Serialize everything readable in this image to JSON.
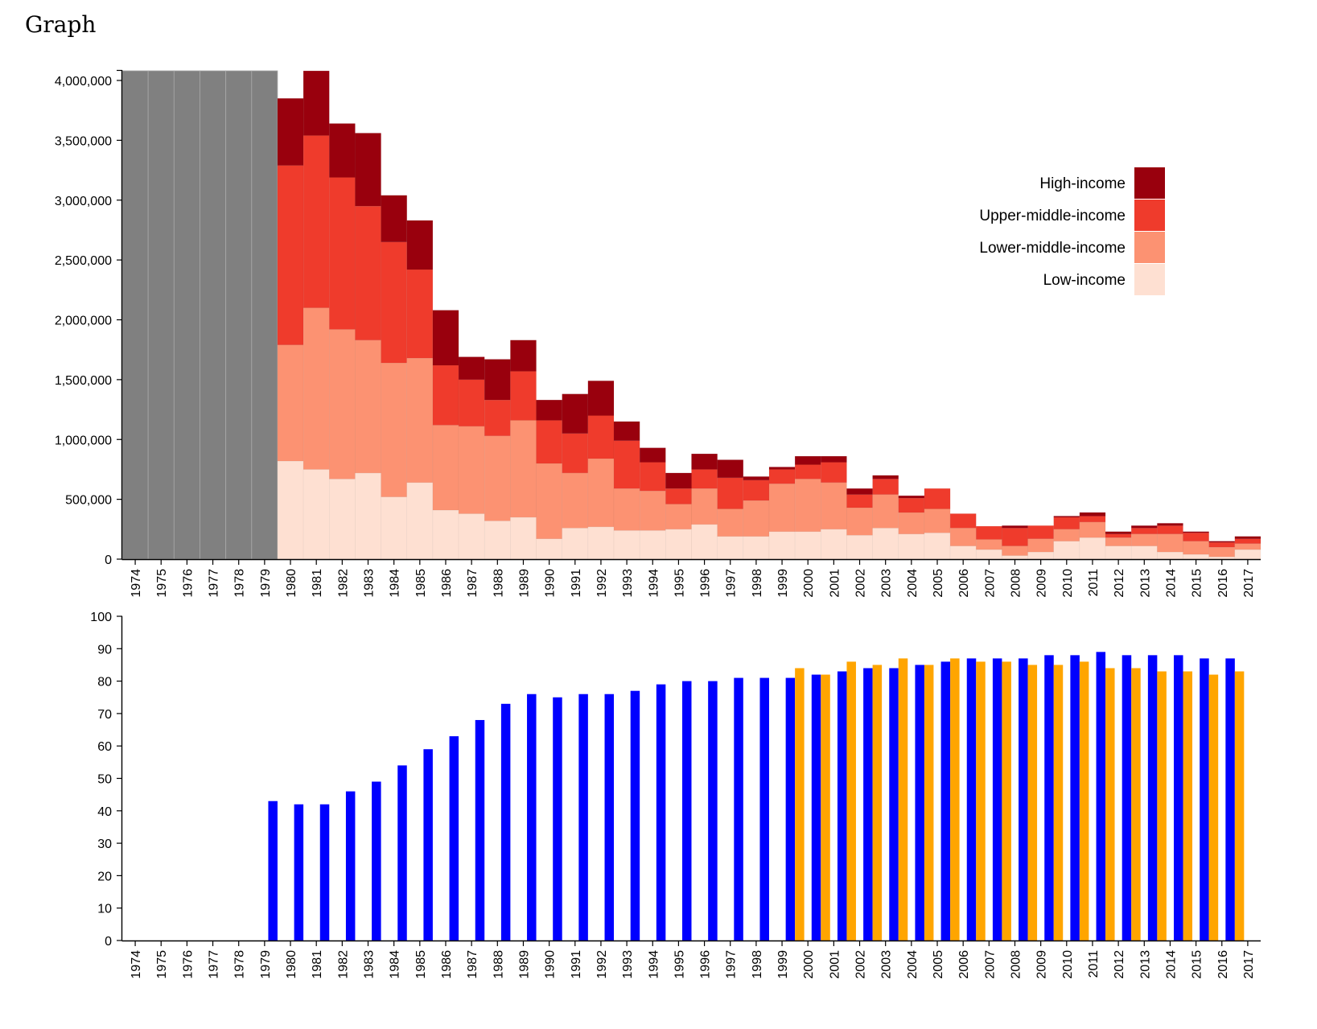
{
  "title": "Graph",
  "chart_data": [
    {
      "type": "bar",
      "stacked": true,
      "categories": [
        "1974",
        "1975",
        "1976",
        "1977",
        "1978",
        "1979",
        "1980",
        "1981",
        "1982",
        "1983",
        "1984",
        "1985",
        "1986",
        "1987",
        "1988",
        "1989",
        "1990",
        "1991",
        "1992",
        "1993",
        "1994",
        "1995",
        "1996",
        "1997",
        "1998",
        "1999",
        "2000",
        "2001",
        "2002",
        "2003",
        "2004",
        "2005",
        "2006",
        "2007",
        "2008",
        "2009",
        "2010",
        "2011",
        "2012",
        "2013",
        "2014",
        "2015",
        "2016",
        "2017"
      ],
      "no_data_categories": [
        "1974",
        "1975",
        "1976",
        "1977",
        "1978",
        "1979"
      ],
      "no_data_color": "#808080",
      "series": [
        {
          "name": "Low-income",
          "color": "#fee0d2",
          "values": [
            null,
            null,
            null,
            null,
            null,
            null,
            820000,
            750000,
            670000,
            720000,
            520000,
            640000,
            410000,
            380000,
            320000,
            350000,
            170000,
            260000,
            270000,
            240000,
            240000,
            250000,
            290000,
            190000,
            190000,
            230000,
            230000,
            250000,
            200000,
            260000,
            210000,
            220000,
            110000,
            80000,
            30000,
            60000,
            150000,
            180000,
            110000,
            110000,
            60000,
            40000,
            20000,
            80000
          ]
        },
        {
          "name": "Lower-middle-income",
          "color": "#fc9272",
          "values": [
            null,
            null,
            null,
            null,
            null,
            null,
            970000,
            1350000,
            1250000,
            1110000,
            1120000,
            1040000,
            710000,
            730000,
            710000,
            810000,
            630000,
            460000,
            570000,
            350000,
            330000,
            210000,
            300000,
            230000,
            300000,
            400000,
            440000,
            390000,
            230000,
            280000,
            180000,
            200000,
            150000,
            85000,
            80000,
            110000,
            100000,
            130000,
            70000,
            100000,
            150000,
            110000,
            80000,
            50000
          ]
        },
        {
          "name": "Upper-middle-income",
          "color": "#ef3b2c",
          "values": [
            null,
            null,
            null,
            null,
            null,
            null,
            1500000,
            1440000,
            1270000,
            1120000,
            1010000,
            740000,
            500000,
            390000,
            300000,
            410000,
            360000,
            330000,
            360000,
            400000,
            240000,
            130000,
            160000,
            260000,
            170000,
            120000,
            120000,
            170000,
            110000,
            130000,
            120000,
            170000,
            120000,
            110000,
            150000,
            110000,
            100000,
            50000,
            30000,
            50000,
            70000,
            70000,
            40000,
            40000
          ]
        },
        {
          "name": "High-income",
          "color": "#99000d",
          "values": [
            null,
            null,
            null,
            null,
            null,
            null,
            560000,
            540000,
            450000,
            610000,
            390000,
            410000,
            460000,
            190000,
            340000,
            260000,
            170000,
            330000,
            290000,
            160000,
            120000,
            130000,
            130000,
            150000,
            30000,
            20000,
            70000,
            50000,
            50000,
            30000,
            20000,
            0,
            0,
            0,
            20000,
            0,
            10000,
            30000,
            20000,
            20000,
            20000,
            10000,
            10000,
            20000
          ]
        }
      ],
      "ylim": [
        0,
        4000000
      ],
      "yticks": [
        0,
        500000,
        1000000,
        1500000,
        2000000,
        2500000,
        3000000,
        3500000,
        4000000
      ],
      "ytick_labels": [
        "0",
        "500,000",
        "1,000,000",
        "1,500,000",
        "2,000,000",
        "2,500,000",
        "3,000,000",
        "3,500,000",
        "4,000,000"
      ],
      "legend_position": "top-right",
      "legend_order": [
        "High-income",
        "Upper-middle-income",
        "Lower-middle-income",
        "Low-income"
      ]
    },
    {
      "type": "bar",
      "categories": [
        "1974",
        "1975",
        "1976",
        "1977",
        "1978",
        "1979",
        "1980",
        "1981",
        "1982",
        "1983",
        "1984",
        "1985",
        "1986",
        "1987",
        "1988",
        "1989",
        "1990",
        "1991",
        "1992",
        "1993",
        "1994",
        "1995",
        "1996",
        "1997",
        "1998",
        "1999",
        "2000",
        "2001",
        "2002",
        "2003",
        "2004",
        "2005",
        "2006",
        "2007",
        "2008",
        "2009",
        "2010",
        "2011",
        "2012",
        "2013",
        "2014",
        "2015",
        "2016",
        "2017"
      ],
      "series": [
        {
          "color": "#0000ff",
          "values": [
            null,
            null,
            null,
            null,
            null,
            43,
            42,
            42,
            46,
            49,
            54,
            59,
            63,
            68,
            73,
            76,
            75,
            76,
            76,
            77,
            79,
            80,
            80,
            81,
            81,
            81,
            82,
            83,
            84,
            84,
            85,
            86,
            87,
            87,
            87,
            88,
            88,
            89,
            88,
            88,
            88,
            87,
            87,
            null
          ]
        },
        {
          "color": "#ffa500",
          "values": [
            null,
            null,
            null,
            null,
            null,
            null,
            null,
            null,
            null,
            null,
            null,
            null,
            null,
            null,
            null,
            null,
            null,
            null,
            null,
            null,
            null,
            null,
            null,
            null,
            null,
            84,
            82,
            86,
            85,
            87,
            85,
            87,
            86,
            86,
            85,
            85,
            86,
            84,
            84,
            83,
            83,
            82,
            83,
            null
          ]
        }
      ],
      "ylim": [
        0,
        100
      ],
      "yticks": [
        0,
        10,
        20,
        30,
        40,
        50,
        60,
        70,
        80,
        90,
        100
      ],
      "ytick_labels": [
        "0",
        "10",
        "20",
        "30",
        "40",
        "50",
        "60",
        "70",
        "80",
        "90",
        "100"
      ]
    }
  ]
}
